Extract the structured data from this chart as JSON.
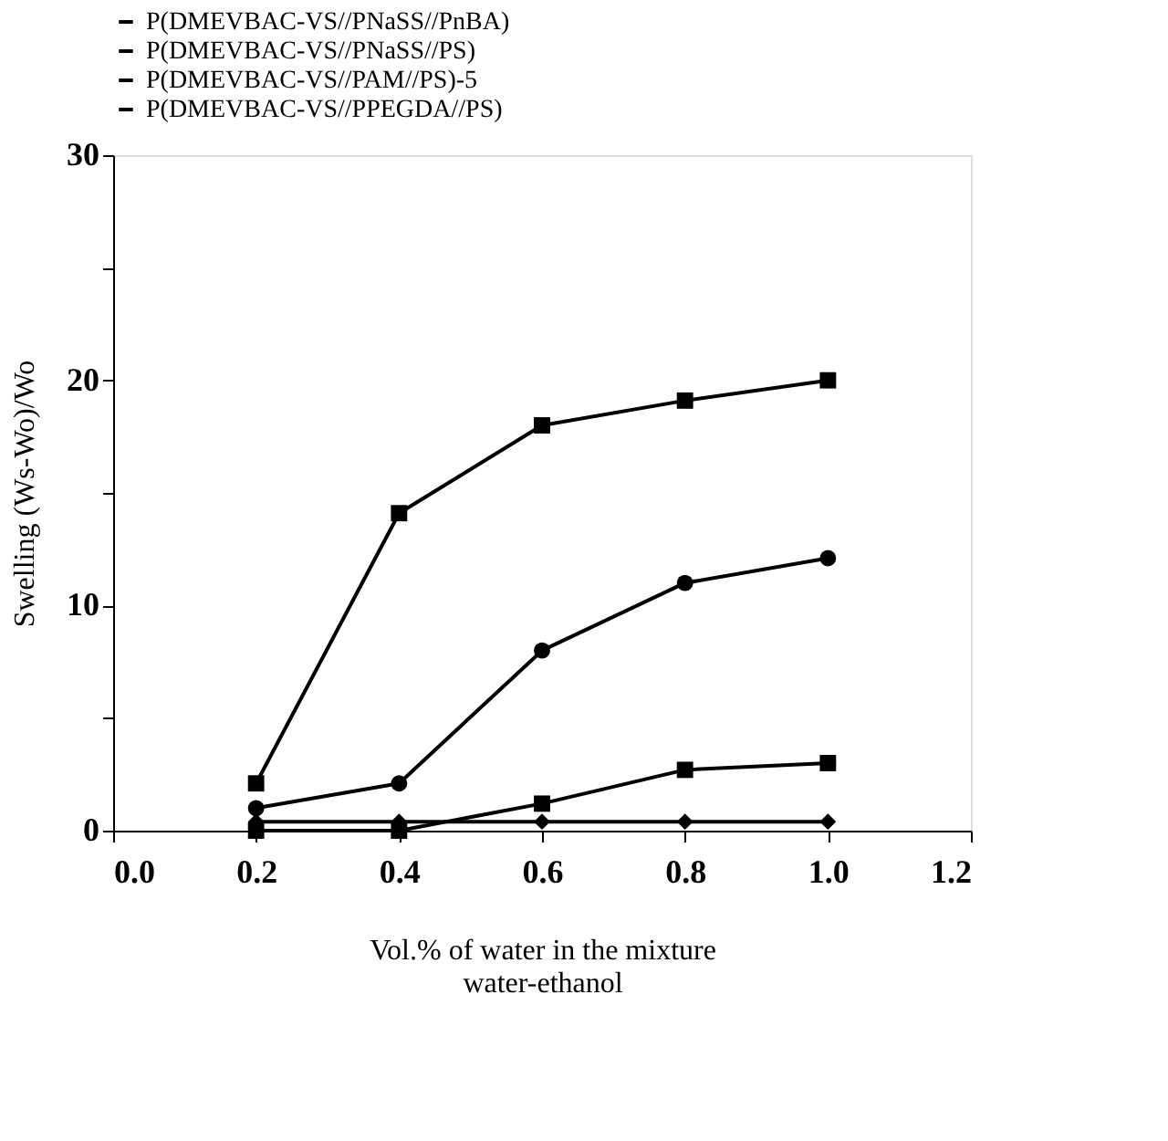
{
  "chart_data": {
    "type": "line",
    "xlabel": "Vol.% of water in the mixture\nwater-ethanol",
    "ylabel": "Swelling (Ws-Wo)/Wo",
    "x": [
      0.2,
      0.4,
      0.6,
      0.8,
      1.0
    ],
    "series": [
      {
        "name": "P(DMEVBAC-VS//PNaSS//PnBA)",
        "color": "#000000",
        "marker": "square",
        "values": [
          2.1,
          14.1,
          18,
          19.1,
          20
        ]
      },
      {
        "name": "P(DMEVBAC-VS//PNaSS//PS)",
        "color": "#000000",
        "marker": "circle",
        "values": [
          1.0,
          2.1,
          8,
          11,
          12.1
        ]
      },
      {
        "name": "P(DMEVBAC-VS//PAM//PS)-5",
        "color": "#000000",
        "marker": "square",
        "values": [
          0,
          0,
          1.2,
          2.7,
          3.0
        ]
      },
      {
        "name": "P(DMEVBAC-VS//PPEGDA//PS)",
        "color": "#000000",
        "marker": "diamond",
        "values": [
          0.4,
          0.4,
          0.4,
          0.4,
          0.4
        ]
      }
    ],
    "xlim": [
      0,
      1.2
    ],
    "ylim": [
      0,
      30
    ],
    "xticks": [
      {
        "value": 0,
        "label": "0.0"
      },
      {
        "value": 0.2,
        "label": "0.2"
      },
      {
        "value": 0.4,
        "label": "0.4"
      },
      {
        "value": 0.6,
        "label": "0.6"
      },
      {
        "value": 0.8,
        "label": "0.8"
      },
      {
        "value": 1.0,
        "label": "1.0"
      },
      {
        "value": 1.2,
        "label": "1.2"
      }
    ],
    "yticks": [
      0,
      {
        "value": 5,
        "label": null
      },
      10,
      {
        "value": 15,
        "label": null
      },
      20,
      {
        "value": 25,
        "label": null
      },
      30
    ],
    "grid": false,
    "legend": "top",
    "line_style": "solid"
  }
}
